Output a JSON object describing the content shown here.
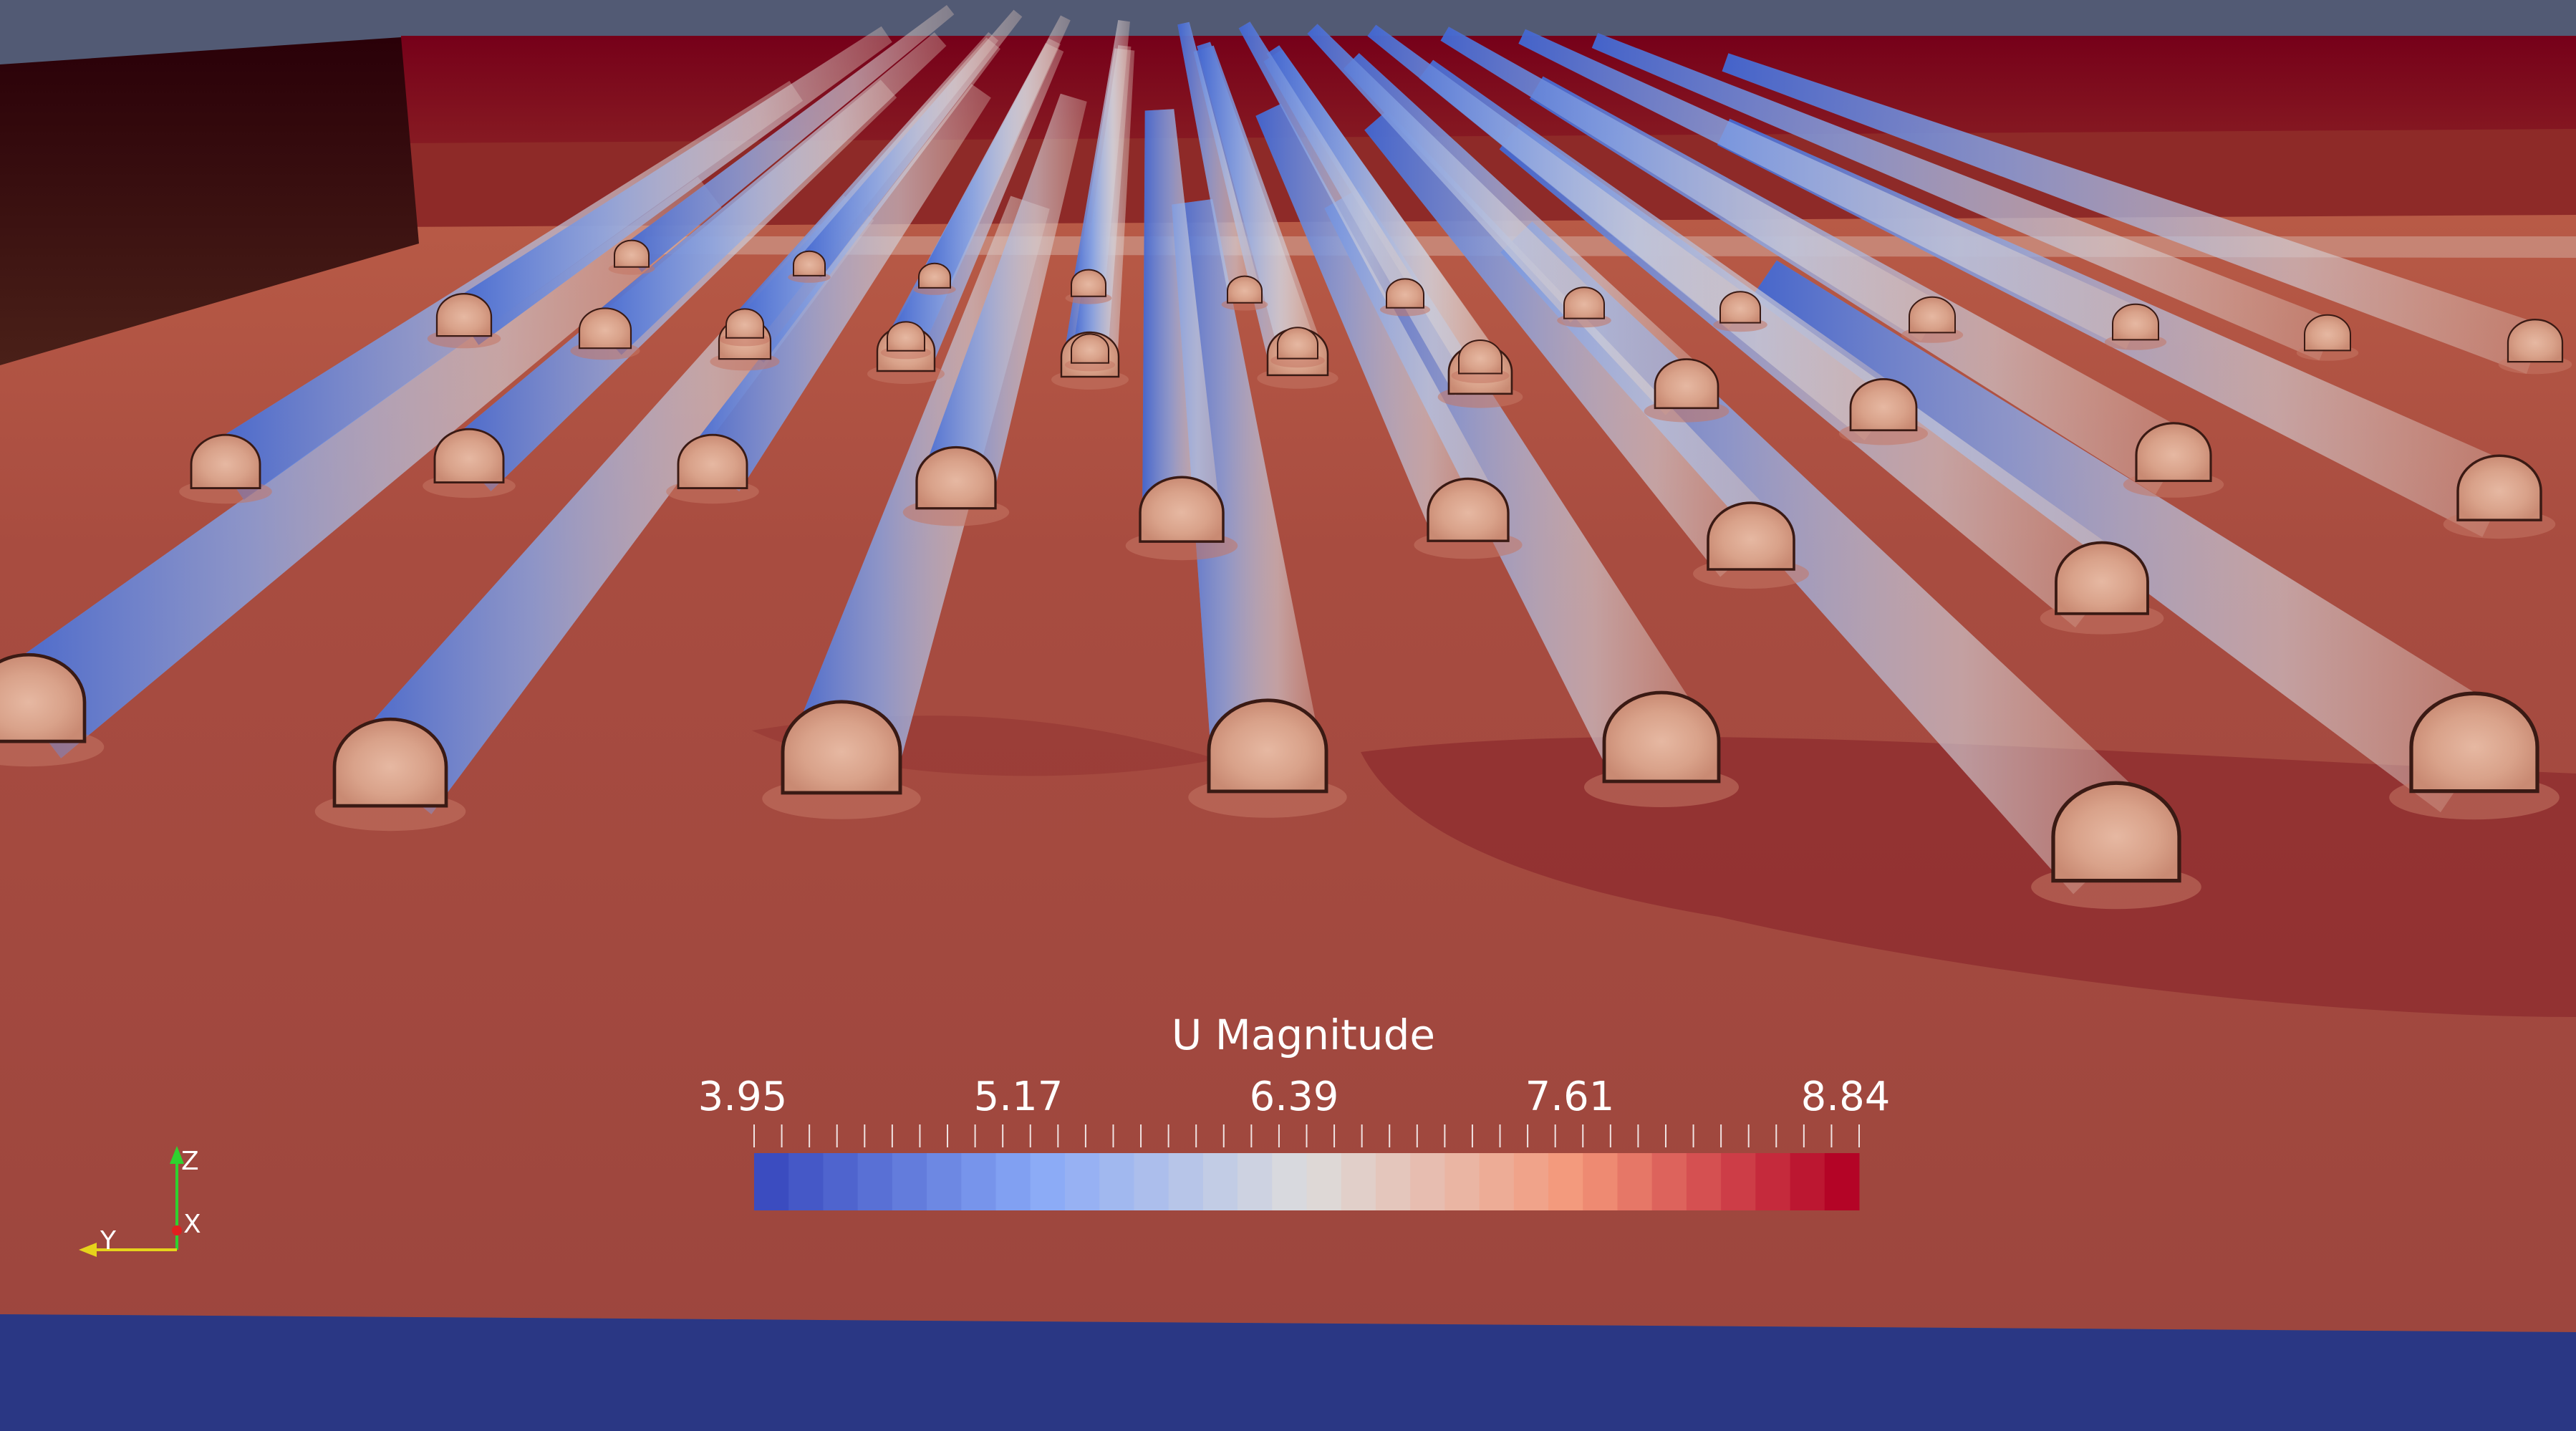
{
  "legend": {
    "title": "U Magnitude",
    "ticks": [
      "3.95",
      "5.17",
      "6.39",
      "7.61",
      "8.84"
    ],
    "range": [
      3.95,
      8.84
    ],
    "color_steps": 32,
    "colors": [
      "#3b4cc0",
      "#89a9f7",
      "#dddcdc",
      "#f4987a",
      "#b40426"
    ]
  },
  "orientation_axes": {
    "z": "Z",
    "x": "X",
    "y": "Y"
  },
  "scene": {
    "background": "#525a74",
    "ground_color": "#9d463e",
    "sky_color": "#780019",
    "floor_color": "#2a3784",
    "wake_color": "#4f75d8"
  }
}
